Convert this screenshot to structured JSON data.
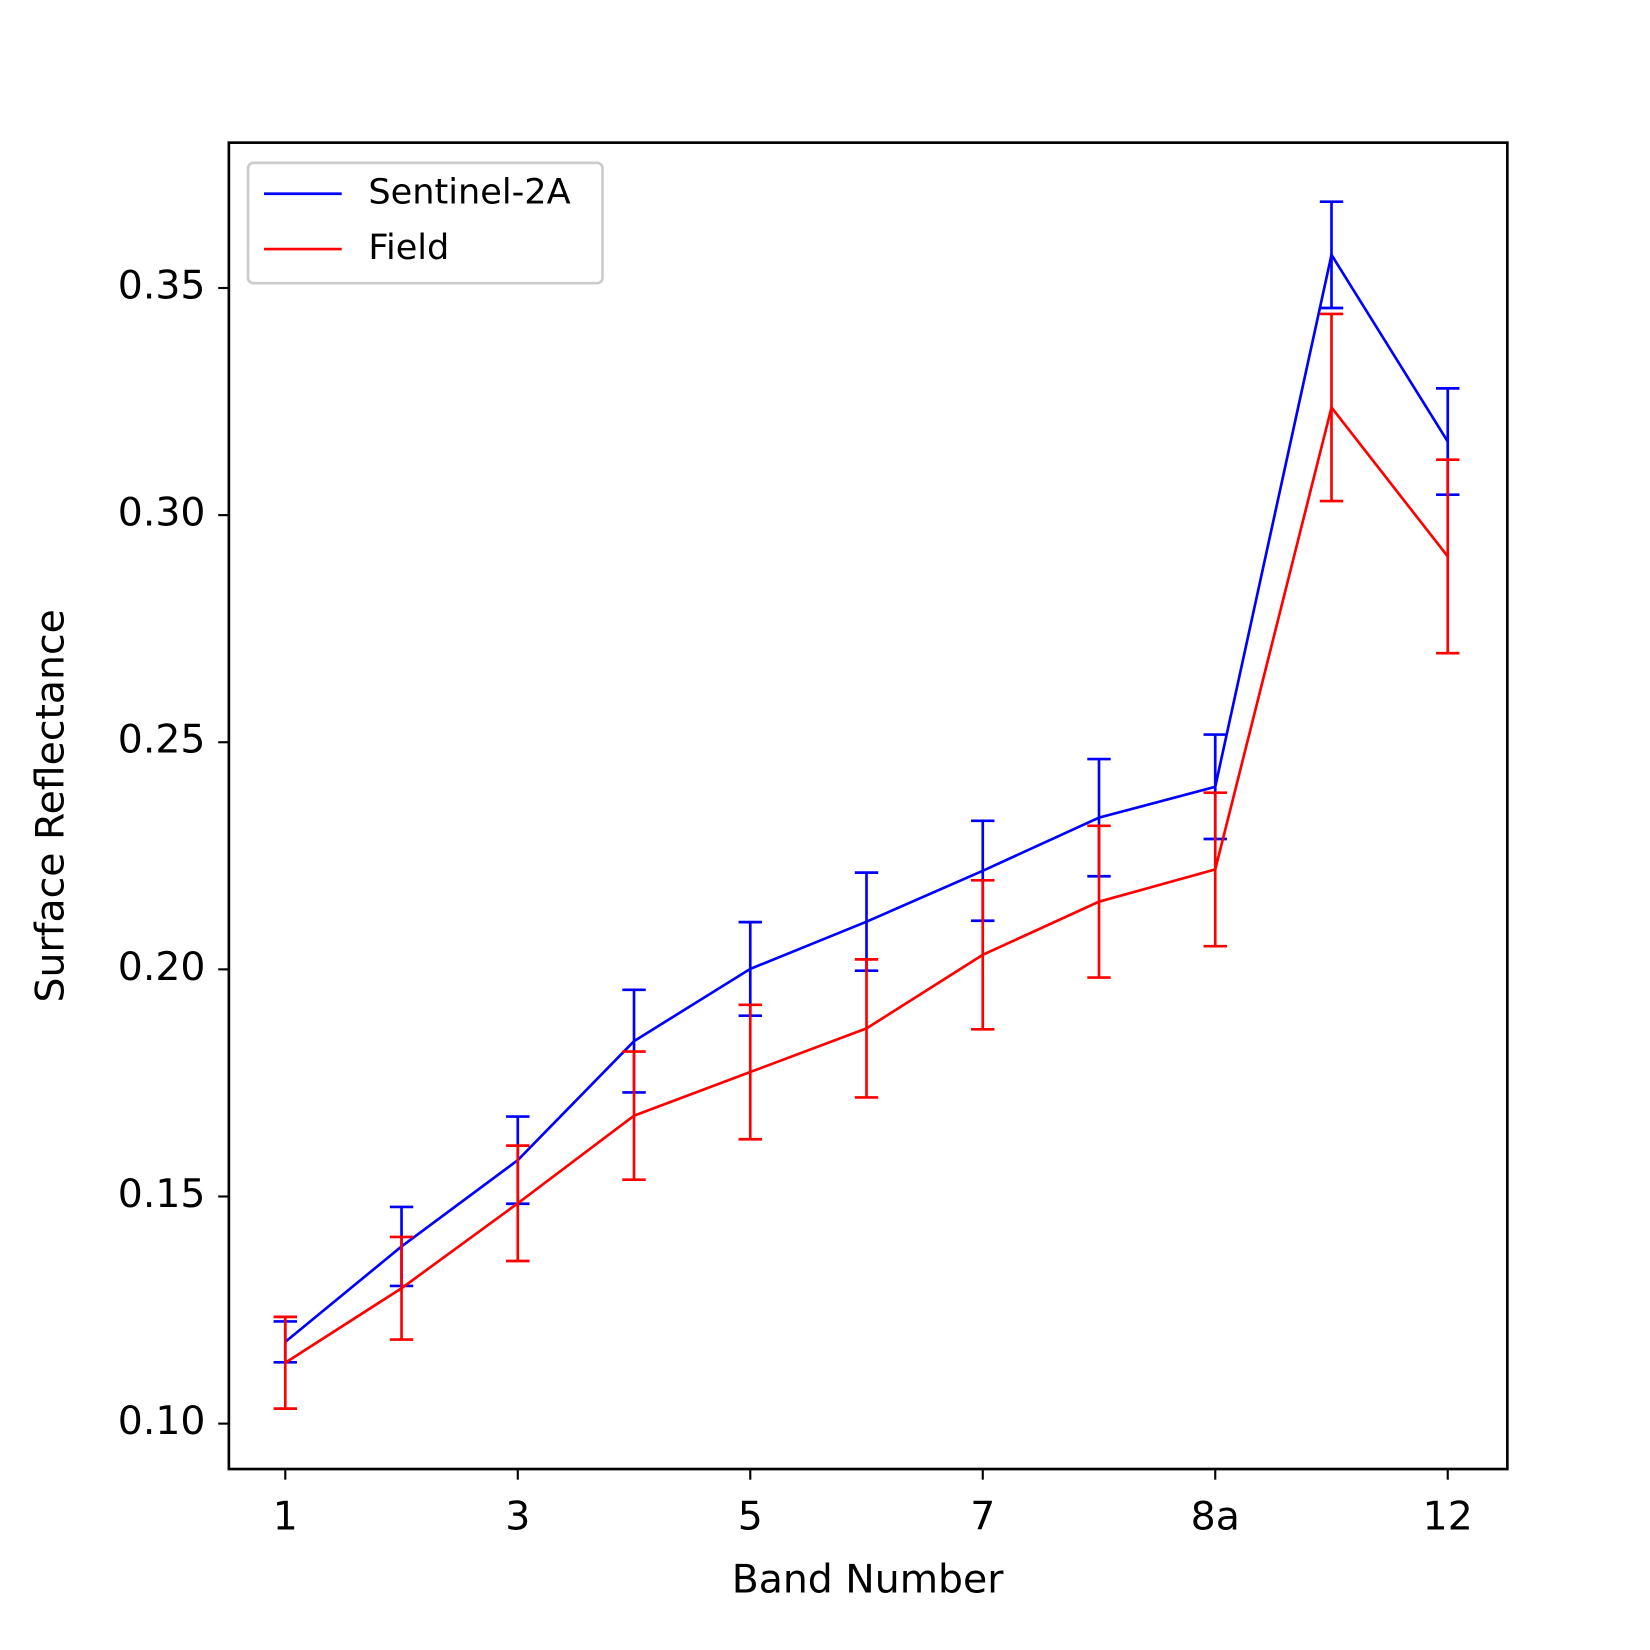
{
  "chart_data": {
    "type": "line",
    "xlabel": "Band Number",
    "ylabel": "Surface Reflectance",
    "categories": [
      "1",
      null,
      "3",
      null,
      "5",
      null,
      "7",
      null,
      "8a",
      null,
      "12"
    ],
    "series": [
      {
        "name": "Sentinel-2A",
        "color": "#0000ff",
        "values": [
          0.118,
          0.139,
          0.158,
          0.1842,
          0.2001,
          0.2105,
          0.2217,
          0.2334,
          0.2402,
          0.3573,
          0.3162
        ],
        "errors": [
          0.0045,
          0.0087,
          0.0096,
          0.0113,
          0.0103,
          0.0108,
          0.011,
          0.0129,
          0.0115,
          0.0117,
          0.0117
        ]
      },
      {
        "name": "Field",
        "color": "#ff0000",
        "values": [
          0.1134,
          0.1298,
          0.1485,
          0.1678,
          0.1774,
          0.187,
          0.2032,
          0.2149,
          0.222,
          0.3237,
          0.2909
        ],
        "errors": [
          0.0101,
          0.0113,
          0.0127,
          0.0141,
          0.0148,
          0.0152,
          0.0164,
          0.0167,
          0.0169,
          0.0206,
          0.0213
        ]
      }
    ],
    "ylim": [
      0.09,
      0.382
    ],
    "yticks": [
      {
        "value": 0.1,
        "label": "0.10"
      },
      0.15,
      {
        "value": 0.2,
        "label": "0.20"
      },
      0.25,
      {
        "value": 0.3,
        "label": "0.30"
      },
      0.35
    ],
    "legend": "upper left",
    "grid": false
  }
}
